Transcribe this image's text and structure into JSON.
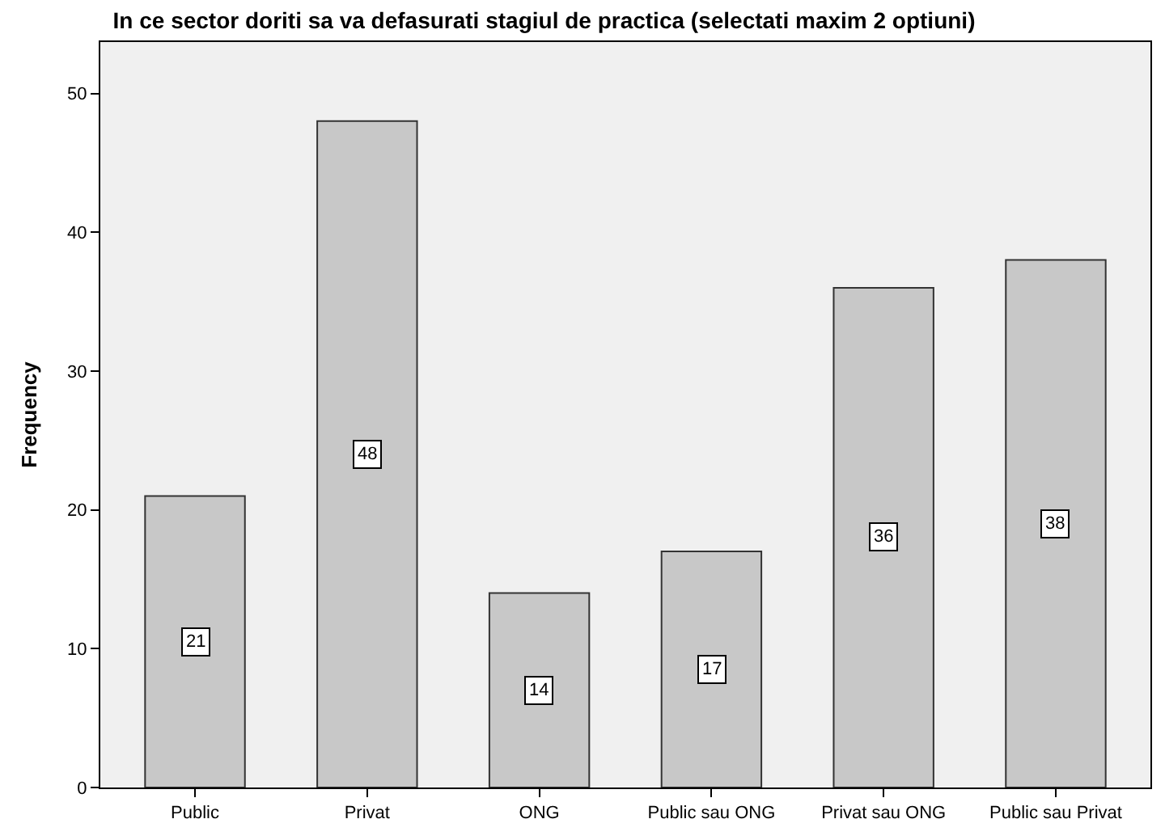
{
  "chart_data": {
    "type": "bar",
    "title": "In ce sector doriti sa va defasurati stagiul de practica (selectati maxim 2 optiuni)",
    "ylabel": "Frequency",
    "categories": [
      "Public",
      "Privat",
      "ONG",
      "Public sau ONG",
      "Privat sau ONG",
      "Public sau Privat"
    ],
    "values": [
      21,
      48,
      14,
      17,
      36,
      38
    ],
    "color": "#c8c8c8",
    "ylim": [
      0,
      53.7
    ],
    "yticks": [
      0,
      10,
      20,
      30,
      40,
      50
    ],
    "grid": false,
    "data_labels": true
  }
}
